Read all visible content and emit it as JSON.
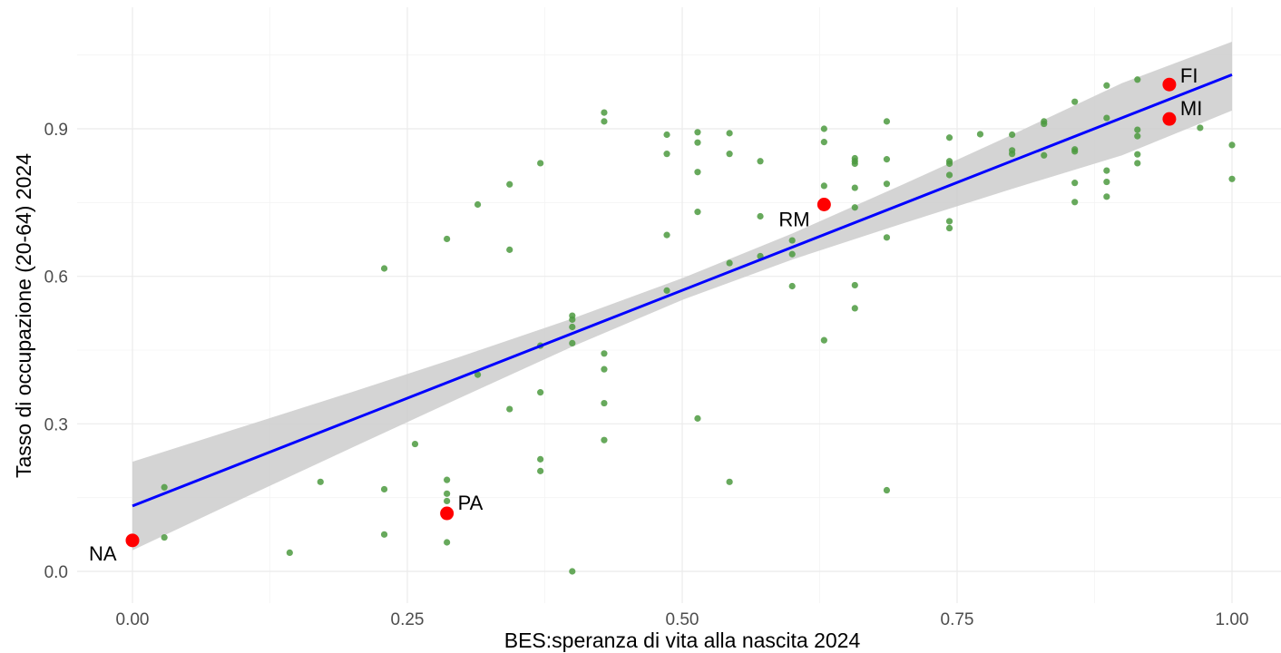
{
  "chart_data": {
    "type": "scatter",
    "title": "",
    "xlabel": "BES:speranza di vita alla nascita 2024",
    "ylabel": "Tasso di occupazione (20-64) 2024",
    "xlim": [
      -0.05,
      1.05
    ],
    "ylim": [
      -0.04,
      1.08
    ],
    "x_ticks": [
      0.0,
      0.25,
      0.5,
      0.75,
      1.0
    ],
    "x_tick_labels": [
      "0.00",
      "0.25",
      "0.50",
      "0.75",
      "1.00"
    ],
    "y_ticks": [
      0.0,
      0.3,
      0.6,
      0.9
    ],
    "y_tick_labels": [
      "0.0",
      "0.3",
      "0.6",
      "0.9"
    ],
    "grid": true,
    "colors": {
      "points": "#4c9a3f",
      "highlight": "#ff0000",
      "fit_line": "#0000ff",
      "confidence_band": "#cccccc"
    },
    "trend_line": {
      "intercept": 0.133,
      "slope": 0.877
    },
    "confidence_band": [
      {
        "x": 0.0,
        "lower": 0.043,
        "upper": 0.223
      },
      {
        "x": 0.1,
        "lower": 0.148,
        "upper": 0.294
      },
      {
        "x": 0.2,
        "lower": 0.252,
        "upper": 0.365
      },
      {
        "x": 0.3,
        "lower": 0.355,
        "upper": 0.438
      },
      {
        "x": 0.4,
        "lower": 0.457,
        "upper": 0.514
      },
      {
        "x": 0.5,
        "lower": 0.552,
        "upper": 0.596
      },
      {
        "x": 0.6,
        "lower": 0.634,
        "upper": 0.687
      },
      {
        "x": 0.7,
        "lower": 0.707,
        "upper": 0.786
      },
      {
        "x": 0.8,
        "lower": 0.778,
        "upper": 0.888
      },
      {
        "x": 0.9,
        "lower": 0.846,
        "upper": 0.993
      },
      {
        "x": 1.0,
        "lower": 0.937,
        "upper": 1.077
      }
    ],
    "highlight_points": [
      {
        "label": "NA",
        "x": 0.0,
        "y": 0.063
      },
      {
        "label": "PA",
        "x": 0.286,
        "y": 0.118
      },
      {
        "label": "RM",
        "x": 0.629,
        "y": 0.746
      },
      {
        "label": "FI",
        "x": 0.943,
        "y": 0.99
      },
      {
        "label": "MI",
        "x": 0.943,
        "y": 0.92
      }
    ],
    "points": [
      [
        0.029,
        0.171
      ],
      [
        0.029,
        0.069
      ],
      [
        0.143,
        0.038
      ],
      [
        0.171,
        0.182
      ],
      [
        0.229,
        0.616
      ],
      [
        0.229,
        0.167
      ],
      [
        0.229,
        0.075
      ],
      [
        0.257,
        0.259
      ],
      [
        0.286,
        0.676
      ],
      [
        0.286,
        0.186
      ],
      [
        0.286,
        0.158
      ],
      [
        0.286,
        0.143
      ],
      [
        0.286,
        0.059
      ],
      [
        0.314,
        0.746
      ],
      [
        0.314,
        0.4
      ],
      [
        0.343,
        0.787
      ],
      [
        0.343,
        0.654
      ],
      [
        0.343,
        0.33
      ],
      [
        0.371,
        0.83
      ],
      [
        0.371,
        0.459
      ],
      [
        0.371,
        0.364
      ],
      [
        0.371,
        0.228
      ],
      [
        0.371,
        0.204
      ],
      [
        0.4,
        0.52
      ],
      [
        0.4,
        0.512
      ],
      [
        0.4,
        0.497
      ],
      [
        0.4,
        0.464
      ],
      [
        0.4,
        0.0
      ],
      [
        0.429,
        0.933
      ],
      [
        0.429,
        0.915
      ],
      [
        0.429,
        0.443
      ],
      [
        0.429,
        0.411
      ],
      [
        0.429,
        0.342
      ],
      [
        0.429,
        0.267
      ],
      [
        0.486,
        0.888
      ],
      [
        0.486,
        0.849
      ],
      [
        0.486,
        0.684
      ],
      [
        0.486,
        0.571
      ],
      [
        0.514,
        0.893
      ],
      [
        0.514,
        0.872
      ],
      [
        0.514,
        0.812
      ],
      [
        0.514,
        0.731
      ],
      [
        0.514,
        0.311
      ],
      [
        0.543,
        0.891
      ],
      [
        0.543,
        0.849
      ],
      [
        0.543,
        0.627
      ],
      [
        0.543,
        0.182
      ],
      [
        0.571,
        0.834
      ],
      [
        0.571,
        0.722
      ],
      [
        0.571,
        0.641
      ],
      [
        0.6,
        0.673
      ],
      [
        0.6,
        0.645
      ],
      [
        0.6,
        0.58
      ],
      [
        0.629,
        0.9
      ],
      [
        0.629,
        0.873
      ],
      [
        0.629,
        0.784
      ],
      [
        0.629,
        0.47
      ],
      [
        0.657,
        0.84
      ],
      [
        0.657,
        0.834
      ],
      [
        0.657,
        0.829
      ],
      [
        0.657,
        0.78
      ],
      [
        0.657,
        0.74
      ],
      [
        0.657,
        0.582
      ],
      [
        0.657,
        0.535
      ],
      [
        0.686,
        0.915
      ],
      [
        0.686,
        0.838
      ],
      [
        0.686,
        0.788
      ],
      [
        0.686,
        0.679
      ],
      [
        0.686,
        0.165
      ],
      [
        0.743,
        0.882
      ],
      [
        0.743,
        0.834
      ],
      [
        0.743,
        0.829
      ],
      [
        0.743,
        0.806
      ],
      [
        0.743,
        0.712
      ],
      [
        0.743,
        0.698
      ],
      [
        0.771,
        0.889
      ],
      [
        0.8,
        0.888
      ],
      [
        0.8,
        0.856
      ],
      [
        0.8,
        0.849
      ],
      [
        0.829,
        0.915
      ],
      [
        0.829,
        0.91
      ],
      [
        0.829,
        0.846
      ],
      [
        0.857,
        0.955
      ],
      [
        0.857,
        0.858
      ],
      [
        0.857,
        0.854
      ],
      [
        0.857,
        0.79
      ],
      [
        0.857,
        0.751
      ],
      [
        0.886,
        0.988
      ],
      [
        0.886,
        0.922
      ],
      [
        0.886,
        0.815
      ],
      [
        0.886,
        0.792
      ],
      [
        0.886,
        0.762
      ],
      [
        0.914,
        1.0
      ],
      [
        0.914,
        0.898
      ],
      [
        0.914,
        0.885
      ],
      [
        0.914,
        0.848
      ],
      [
        0.914,
        0.83
      ],
      [
        0.971,
        0.902
      ],
      [
        1.0,
        0.867
      ],
      [
        1.0,
        0.798
      ]
    ]
  }
}
